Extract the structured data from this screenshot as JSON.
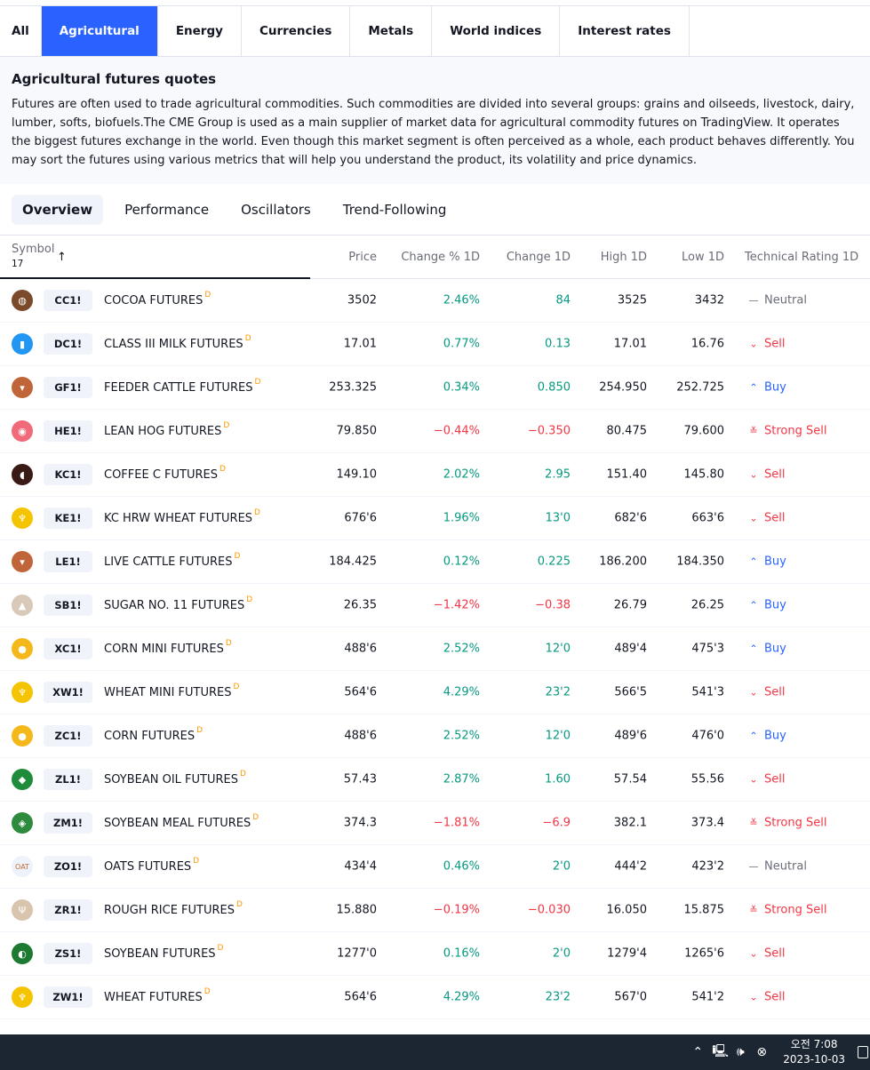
{
  "category_tabs": [
    {
      "label": "All",
      "active": false
    },
    {
      "label": "Agricultural",
      "active": true
    },
    {
      "label": "Energy",
      "active": false
    },
    {
      "label": "Currencies",
      "active": false
    },
    {
      "label": "Metals",
      "active": false
    },
    {
      "label": "World indices",
      "active": false
    },
    {
      "label": "Interest rates",
      "active": false
    }
  ],
  "intro": {
    "title": "Agricultural futures quotes",
    "text": "Futures are often used to trade agricultural commodities. Such commodities are divided into several groups: grains and oilseeds, livestock, dairy, lumber, softs, biofuels.The CME Group is used as a main supplier of market data for agricultural commodity futures on TradingView. It operates the biggest futures exchange in the world. Even though this market segment is often perceived as a whole, each product behaves differently. You may sort the futures using various metrics that will help you understand the product, its volatility and price dynamics."
  },
  "sub_tabs": [
    {
      "label": "Overview",
      "active": true
    },
    {
      "label": "Performance",
      "active": false
    },
    {
      "label": "Oscillators",
      "active": false
    },
    {
      "label": "Trend-Following",
      "active": false
    }
  ],
  "table": {
    "headers": {
      "symbol": "Symbol",
      "count": "17",
      "sort_arrow": "↑",
      "price": "Price",
      "change_pct": "Change % 1D",
      "change": "Change 1D",
      "high": "High 1D",
      "low": "Low 1D",
      "rating": "Technical Rating 1D"
    },
    "delayed_marker": "D",
    "rows": [
      {
        "ticker": "CC1!",
        "name": "COCOA FUTURES",
        "price": "3502",
        "chg_pct": "2.46%",
        "chg": "84",
        "high": "3525",
        "low": "3432",
        "rating": "Neutral",
        "dir": "pos",
        "rt": "neutral",
        "icon": "cocoa-icon",
        "color": "#7a4a2a",
        "glyph": "◍"
      },
      {
        "ticker": "DC1!",
        "name": "CLASS III MILK FUTURES",
        "price": "17.01",
        "chg_pct": "0.77%",
        "chg": "0.13",
        "high": "17.01",
        "low": "16.76",
        "rating": "Sell",
        "dir": "pos",
        "rt": "sell",
        "icon": "milk-bottle-icon",
        "color": "#2196f3",
        "glyph": "▮"
      },
      {
        "ticker": "GF1!",
        "name": "FEEDER CATTLE FUTURES",
        "price": "253.325",
        "chg_pct": "0.34%",
        "chg": "0.850",
        "high": "254.950",
        "low": "252.725",
        "rating": "Buy",
        "dir": "pos",
        "rt": "buy",
        "icon": "cattle-icon",
        "color": "#c0653a",
        "glyph": "▾"
      },
      {
        "ticker": "HE1!",
        "name": "LEAN HOG FUTURES",
        "price": "79.850",
        "chg_pct": "−0.44%",
        "chg": "−0.350",
        "high": "80.475",
        "low": "79.600",
        "rating": "Strong Sell",
        "dir": "neg",
        "rt": "strong-sell",
        "icon": "hog-icon",
        "color": "#f06a7a",
        "glyph": "◉"
      },
      {
        "ticker": "KC1!",
        "name": "COFFEE C FUTURES",
        "price": "149.10",
        "chg_pct": "2.02%",
        "chg": "2.95",
        "high": "151.40",
        "low": "145.80",
        "rating": "Sell",
        "dir": "pos",
        "rt": "sell",
        "icon": "coffee-bean-icon",
        "color": "#3a1a14",
        "glyph": "◖"
      },
      {
        "ticker": "KE1!",
        "name": "KC HRW WHEAT FUTURES",
        "price": "676'6",
        "chg_pct": "1.96%",
        "chg": "13'0",
        "high": "682'6",
        "low": "663'6",
        "rating": "Sell",
        "dir": "pos",
        "rt": "sell",
        "icon": "wheat-icon",
        "color": "#f5c400",
        "glyph": "♆"
      },
      {
        "ticker": "LE1!",
        "name": "LIVE CATTLE FUTURES",
        "price": "184.425",
        "chg_pct": "0.12%",
        "chg": "0.225",
        "high": "186.200",
        "low": "184.350",
        "rating": "Buy",
        "dir": "pos",
        "rt": "buy",
        "icon": "cattle-icon",
        "color": "#c0653a",
        "glyph": "▾"
      },
      {
        "ticker": "SB1!",
        "name": "SUGAR NO. 11 FUTURES",
        "price": "26.35",
        "chg_pct": "−1.42%",
        "chg": "−0.38",
        "high": "26.79",
        "low": "26.25",
        "rating": "Buy",
        "dir": "neg",
        "rt": "buy",
        "icon": "sugar-icon",
        "color": "#d9c9b8",
        "glyph": "▲"
      },
      {
        "ticker": "XC1!",
        "name": "CORN MINI FUTURES",
        "price": "488'6",
        "chg_pct": "2.52%",
        "chg": "12'0",
        "high": "489'4",
        "low": "475'3",
        "rating": "Buy",
        "dir": "pos",
        "rt": "buy",
        "icon": "corn-icon",
        "color": "#f5b81a",
        "glyph": "●"
      },
      {
        "ticker": "XW1!",
        "name": "WHEAT MINI FUTURES",
        "price": "564'6",
        "chg_pct": "4.29%",
        "chg": "23'2",
        "high": "566'5",
        "low": "541'3",
        "rating": "Sell",
        "dir": "pos",
        "rt": "sell",
        "icon": "wheat-icon",
        "color": "#f5c400",
        "glyph": "♆"
      },
      {
        "ticker": "ZC1!",
        "name": "CORN FUTURES",
        "price": "488'6",
        "chg_pct": "2.52%",
        "chg": "12'0",
        "high": "489'6",
        "low": "476'0",
        "rating": "Buy",
        "dir": "pos",
        "rt": "buy",
        "icon": "corn-icon",
        "color": "#f5b81a",
        "glyph": "●"
      },
      {
        "ticker": "ZL1!",
        "name": "SOYBEAN OIL FUTURES",
        "price": "57.43",
        "chg_pct": "2.87%",
        "chg": "1.60",
        "high": "57.54",
        "low": "55.56",
        "rating": "Sell",
        "dir": "pos",
        "rt": "sell",
        "icon": "oil-drop-icon",
        "color": "#1e8c3a",
        "glyph": "◆"
      },
      {
        "ticker": "ZM1!",
        "name": "SOYBEAN MEAL FUTURES",
        "price": "374.3",
        "chg_pct": "−1.81%",
        "chg": "−6.9",
        "high": "382.1",
        "low": "373.4",
        "rating": "Strong Sell",
        "dir": "neg",
        "rt": "strong-sell",
        "icon": "soybean-meal-icon",
        "color": "#2e8b3e",
        "glyph": "◈"
      },
      {
        "ticker": "ZO1!",
        "name": "OATS FUTURES",
        "price": "434'4",
        "chg_pct": "0.46%",
        "chg": "2'0",
        "high": "444'2",
        "low": "423'2",
        "rating": "Neutral",
        "dir": "pos",
        "rt": "neutral",
        "icon": "oats-icon",
        "color": "#eef2fa",
        "glyph": "OAT"
      },
      {
        "ticker": "ZR1!",
        "name": "ROUGH RICE FUTURES",
        "price": "15.880",
        "chg_pct": "−0.19%",
        "chg": "−0.030",
        "high": "16.050",
        "low": "15.875",
        "rating": "Strong Sell",
        "dir": "neg",
        "rt": "strong-sell",
        "icon": "rice-icon",
        "color": "#d9c4ae",
        "glyph": "Ψ"
      },
      {
        "ticker": "ZS1!",
        "name": "SOYBEAN FUTURES",
        "price": "1277'0",
        "chg_pct": "0.16%",
        "chg": "2'0",
        "high": "1279'4",
        "low": "1265'6",
        "rating": "Sell",
        "dir": "pos",
        "rt": "sell",
        "icon": "soybean-icon",
        "color": "#1e7a33",
        "glyph": "◐"
      },
      {
        "ticker": "ZW1!",
        "name": "WHEAT FUTURES",
        "price": "564'6",
        "chg_pct": "4.29%",
        "chg": "23'2",
        "high": "567'0",
        "low": "541'2",
        "rating": "Sell",
        "dir": "pos",
        "rt": "sell",
        "icon": "wheat-icon",
        "color": "#f5c400",
        "glyph": "♆"
      }
    ]
  },
  "taskbar": {
    "time": "오전 7:08",
    "date": "2023-10-03"
  }
}
